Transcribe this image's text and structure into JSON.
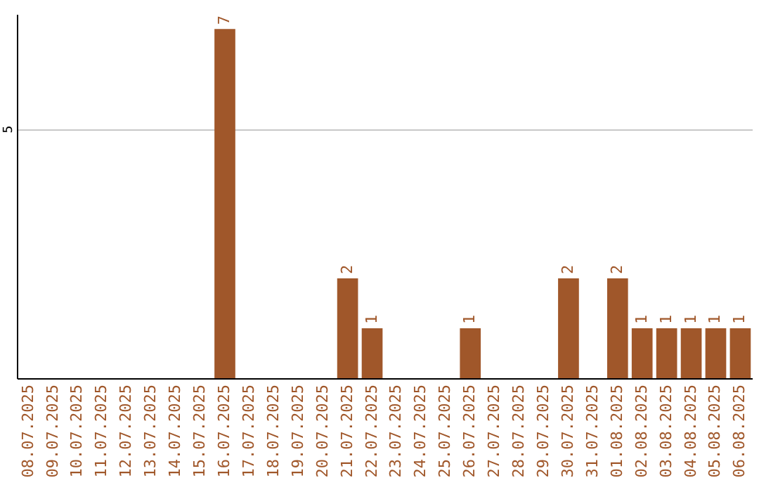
{
  "chart_data": {
    "type": "bar",
    "categories": [
      "08.07.2025",
      "09.07.2025",
      "10.07.2025",
      "11.07.2025",
      "12.07.2025",
      "13.07.2025",
      "14.07.2025",
      "15.07.2025",
      "16.07.2025",
      "17.07.2025",
      "18.07.2025",
      "19.07.2025",
      "20.07.2025",
      "21.07.2025",
      "22.07.2025",
      "23.07.2025",
      "24.07.2025",
      "25.07.2025",
      "26.07.2025",
      "27.07.2025",
      "28.07.2025",
      "29.07.2025",
      "30.07.2025",
      "31.07.2025",
      "01.08.2025",
      "02.08.2025",
      "03.08.2025",
      "04.08.2025",
      "05.08.2025",
      "06.08.2025"
    ],
    "values": [
      0,
      0,
      0,
      0,
      0,
      0,
      0,
      0,
      7,
      0,
      0,
      0,
      0,
      2,
      1,
      0,
      0,
      0,
      1,
      0,
      0,
      0,
      2,
      0,
      2,
      1,
      1,
      1,
      1,
      1
    ],
    "value_labels": [
      null,
      null,
      null,
      null,
      null,
      null,
      null,
      null,
      "7",
      null,
      null,
      null,
      null,
      "2",
      "1",
      null,
      null,
      null,
      "1",
      null,
      null,
      null,
      "2",
      null,
      "2",
      "1",
      "1",
      "1",
      "1",
      "1"
    ],
    "color": "#a0572a",
    "ylim": [
      0,
      7.3
    ],
    "yticks": [
      5
    ],
    "grid": "y"
  }
}
